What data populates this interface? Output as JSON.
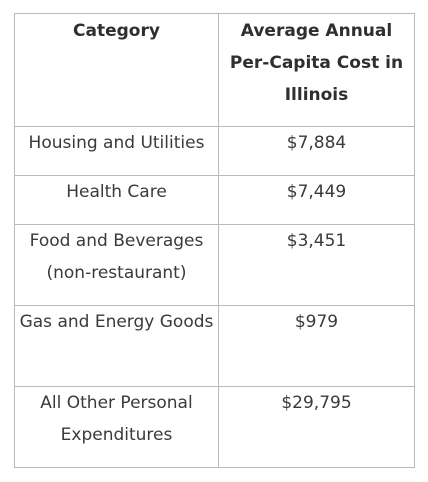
{
  "table": {
    "headers": [
      "Category",
      "Average Annual Per-Capita Cost in Illinois"
    ],
    "rows": [
      {
        "category": "Housing and Utilities",
        "cost": "$7,884"
      },
      {
        "category": "Health Care",
        "cost": "$7,449"
      },
      {
        "category": "Food and Beverages (non-restaurant)",
        "cost": "$3,451"
      },
      {
        "category": "Gas and Energy Goods",
        "cost": "$979"
      },
      {
        "category": "All Other Personal Expenditures",
        "cost": "$29,795"
      }
    ]
  }
}
